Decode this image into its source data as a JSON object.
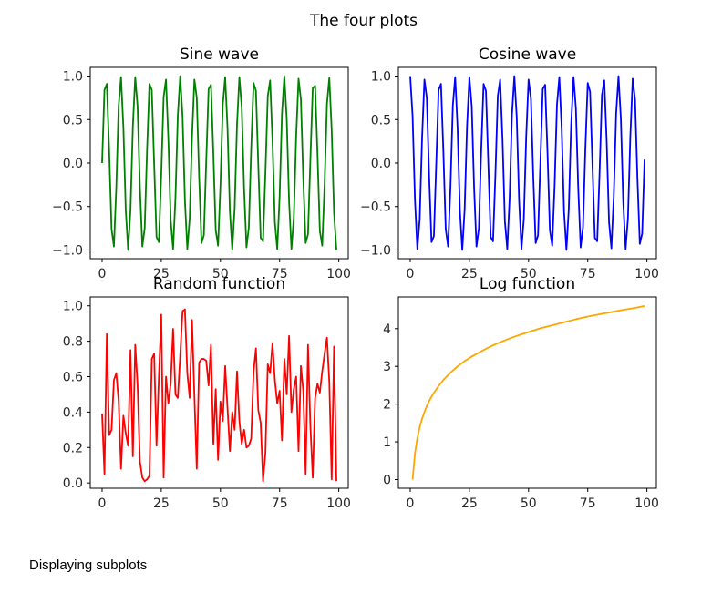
{
  "figure": {
    "suptitle": "The four plots",
    "caption": "Displaying subplots"
  },
  "chart_data": [
    {
      "type": "line",
      "title": "Sine wave",
      "series_color": "#008000",
      "xlim": [
        -5,
        104
      ],
      "ylim": [
        -1.1,
        1.1
      ],
      "xticks": [
        0,
        25,
        50,
        75,
        100
      ],
      "yticks": [
        -1.0,
        -0.5,
        0.0,
        0.5,
        1.0
      ],
      "xlabel": "",
      "ylabel": "",
      "x": [
        0,
        1,
        2,
        3,
        4,
        5,
        6,
        7,
        8,
        9,
        10,
        11,
        12,
        13,
        14,
        15,
        16,
        17,
        18,
        19,
        20,
        21,
        22,
        23,
        24,
        25,
        26,
        27,
        28,
        29,
        30,
        31,
        32,
        33,
        34,
        35,
        36,
        37,
        38,
        39,
        40,
        41,
        42,
        43,
        44,
        45,
        46,
        47,
        48,
        49,
        50,
        51,
        52,
        53,
        54,
        55,
        56,
        57,
        58,
        59,
        60,
        61,
        62,
        63,
        64,
        65,
        66,
        67,
        68,
        69,
        70,
        71,
        72,
        73,
        74,
        75,
        76,
        77,
        78,
        79,
        80,
        81,
        82,
        83,
        84,
        85,
        86,
        87,
        88,
        89,
        90,
        91,
        92,
        93,
        94,
        95,
        96,
        97,
        98,
        99
      ],
      "y": [
        0.0,
        0.84,
        0.91,
        0.14,
        -0.76,
        -0.96,
        -0.28,
        0.66,
        0.99,
        0.41,
        -0.54,
        -1.0,
        -0.54,
        0.42,
        0.99,
        0.65,
        -0.29,
        -0.96,
        -0.75,
        0.15,
        0.91,
        0.84,
        -0.01,
        -0.85,
        -0.91,
        -0.13,
        0.76,
        0.96,
        0.27,
        -0.66,
        -0.99,
        -0.4,
        0.55,
        1.0,
        0.53,
        -0.43,
        -0.99,
        -0.64,
        0.3,
        0.96,
        0.75,
        -0.16,
        -0.92,
        -0.83,
        0.02,
        0.85,
        0.9,
        0.12,
        -0.77,
        -0.95,
        -0.26,
        0.67,
        0.99,
        0.4,
        -0.56,
        -1.0,
        -0.52,
        0.44,
        0.99,
        0.64,
        -0.3,
        -0.97,
        -0.74,
        0.17,
        0.92,
        0.83,
        -0.03,
        -0.86,
        -0.9,
        -0.11,
        0.77,
        0.95,
        0.25,
        -0.68,
        -0.99,
        -0.39,
        0.57,
        1.0,
        0.51,
        -0.44,
        -0.99,
        -0.63,
        0.31,
        0.97,
        0.73,
        -0.18,
        -0.92,
        -0.82,
        0.04,
        0.86,
        0.89,
        0.11,
        -0.78,
        -0.95,
        -0.25,
        0.68,
        0.98,
        0.38,
        -0.57,
        -1.0
      ]
    },
    {
      "type": "line",
      "title": "Cosine wave",
      "series_color": "#0000ff",
      "xlim": [
        -5,
        104
      ],
      "ylim": [
        -1.1,
        1.1
      ],
      "xticks": [
        0,
        25,
        50,
        75,
        100
      ],
      "yticks": [
        -1.0,
        -0.5,
        0.0,
        0.5,
        1.0
      ],
      "xlabel": "",
      "ylabel": "",
      "x": [
        0,
        1,
        2,
        3,
        4,
        5,
        6,
        7,
        8,
        9,
        10,
        11,
        12,
        13,
        14,
        15,
        16,
        17,
        18,
        19,
        20,
        21,
        22,
        23,
        24,
        25,
        26,
        27,
        28,
        29,
        30,
        31,
        32,
        33,
        34,
        35,
        36,
        37,
        38,
        39,
        40,
        41,
        42,
        43,
        44,
        45,
        46,
        47,
        48,
        49,
        50,
        51,
        52,
        53,
        54,
        55,
        56,
        57,
        58,
        59,
        60,
        61,
        62,
        63,
        64,
        65,
        66,
        67,
        68,
        69,
        70,
        71,
        72,
        73,
        74,
        75,
        76,
        77,
        78,
        79,
        80,
        81,
        82,
        83,
        84,
        85,
        86,
        87,
        88,
        89,
        90,
        91,
        92,
        93,
        94,
        95,
        96,
        97,
        98,
        99
      ],
      "y": [
        1.0,
        0.54,
        -0.42,
        -0.99,
        -0.65,
        0.28,
        0.96,
        0.75,
        -0.15,
        -0.91,
        -0.84,
        0.0,
        0.84,
        0.91,
        0.14,
        -0.76,
        -0.96,
        -0.28,
        0.66,
        0.99,
        0.41,
        -0.55,
        -1.0,
        -0.53,
        0.42,
        0.99,
        0.65,
        -0.29,
        -0.96,
        -0.75,
        0.15,
        0.91,
        0.83,
        -0.01,
        -0.85,
        -0.9,
        -0.13,
        0.77,
        0.96,
        0.27,
        -0.67,
        -0.99,
        -0.4,
        0.56,
        1.0,
        0.53,
        -0.43,
        -0.99,
        -0.64,
        0.3,
        0.96,
        0.74,
        -0.16,
        -0.92,
        -0.83,
        0.02,
        0.85,
        0.9,
        0.12,
        -0.77,
        -0.95,
        -0.26,
        0.67,
        0.99,
        0.39,
        -0.56,
        -1.0,
        -0.52,
        0.44,
        0.99,
        0.63,
        -0.3,
        -0.97,
        -0.74,
        0.17,
        0.92,
        0.82,
        -0.03,
        -0.86,
        -0.9,
        -0.11,
        0.78,
        0.95,
        0.25,
        -0.68,
        -0.98,
        -0.38,
        0.57,
        1.0,
        0.51,
        -0.45,
        -0.99,
        -0.63,
        0.31,
        0.97,
        0.73,
        -0.18,
        -0.93,
        -0.81,
        0.04
      ]
    },
    {
      "type": "line",
      "title": "Random function",
      "series_color": "#ff0000",
      "xlim": [
        -5,
        104
      ],
      "ylim": [
        -0.03,
        1.05
      ],
      "xticks": [
        0,
        25,
        50,
        75,
        100
      ],
      "yticks": [
        0.0,
        0.2,
        0.4,
        0.6,
        0.8,
        1.0
      ],
      "xlabel": "",
      "ylabel": "",
      "x": [
        0,
        1,
        2,
        3,
        4,
        5,
        6,
        7,
        8,
        9,
        10,
        11,
        12,
        13,
        14,
        15,
        16,
        17,
        18,
        19,
        20,
        21,
        22,
        23,
        24,
        25,
        26,
        27,
        28,
        29,
        30,
        31,
        32,
        33,
        34,
        35,
        36,
        37,
        38,
        39,
        40,
        41,
        42,
        43,
        44,
        45,
        46,
        47,
        48,
        49,
        50,
        51,
        52,
        53,
        54,
        55,
        56,
        57,
        58,
        59,
        60,
        61,
        62,
        63,
        64,
        65,
        66,
        67,
        68,
        69,
        70,
        71,
        72,
        73,
        74,
        75,
        76,
        77,
        78,
        79,
        80,
        81,
        82,
        83,
        84,
        85,
        86,
        87,
        88,
        89,
        90,
        91,
        92,
        93,
        94,
        95,
        96,
        97,
        98,
        99
      ],
      "y": [
        0.39,
        0.05,
        0.84,
        0.27,
        0.3,
        0.58,
        0.62,
        0.46,
        0.08,
        0.38,
        0.28,
        0.21,
        0.75,
        0.15,
        0.78,
        0.55,
        0.12,
        0.03,
        0.01,
        0.02,
        0.04,
        0.7,
        0.73,
        0.21,
        0.6,
        0.95,
        0.03,
        0.6,
        0.45,
        0.56,
        0.87,
        0.5,
        0.48,
        0.72,
        0.97,
        0.98,
        0.62,
        0.48,
        0.92,
        0.49,
        0.08,
        0.68,
        0.7,
        0.7,
        0.69,
        0.55,
        0.78,
        0.22,
        0.53,
        0.13,
        0.46,
        0.35,
        0.66,
        0.42,
        0.18,
        0.4,
        0.3,
        0.63,
        0.35,
        0.22,
        0.3,
        0.2,
        0.21,
        0.25,
        0.63,
        0.76,
        0.41,
        0.34,
        0.01,
        0.17,
        0.67,
        0.62,
        0.79,
        0.58,
        0.45,
        0.52,
        0.24,
        0.7,
        0.5,
        0.83,
        0.4,
        0.53,
        0.6,
        0.18,
        0.66,
        0.52,
        0.05,
        0.78,
        0.32,
        0.03,
        0.48,
        0.56,
        0.51,
        0.63,
        0.73,
        0.82,
        0.57,
        0.02,
        0.77,
        0.01
      ]
    },
    {
      "type": "line",
      "title": "Log function",
      "series_color": "#ffa500",
      "xlim": [
        -5,
        104
      ],
      "ylim": [
        -0.23,
        4.84
      ],
      "xticks": [
        0,
        25,
        50,
        75,
        100
      ],
      "yticks": [
        0,
        1,
        2,
        3,
        4
      ],
      "xlabel": "",
      "ylabel": "",
      "x": [
        1,
        2,
        3,
        4,
        5,
        6,
        7,
        8,
        9,
        10,
        12,
        14,
        16,
        18,
        20,
        23,
        26,
        30,
        34,
        38,
        42,
        46,
        50,
        55,
        60,
        65,
        70,
        75,
        80,
        85,
        90,
        95,
        99
      ],
      "y": [
        0.0,
        0.69,
        1.1,
        1.39,
        1.61,
        1.79,
        1.95,
        2.08,
        2.2,
        2.3,
        2.48,
        2.64,
        2.77,
        2.89,
        3.0,
        3.14,
        3.26,
        3.4,
        3.53,
        3.64,
        3.74,
        3.83,
        3.91,
        4.01,
        4.09,
        4.17,
        4.25,
        4.32,
        4.38,
        4.44,
        4.5,
        4.55,
        4.6
      ]
    }
  ]
}
